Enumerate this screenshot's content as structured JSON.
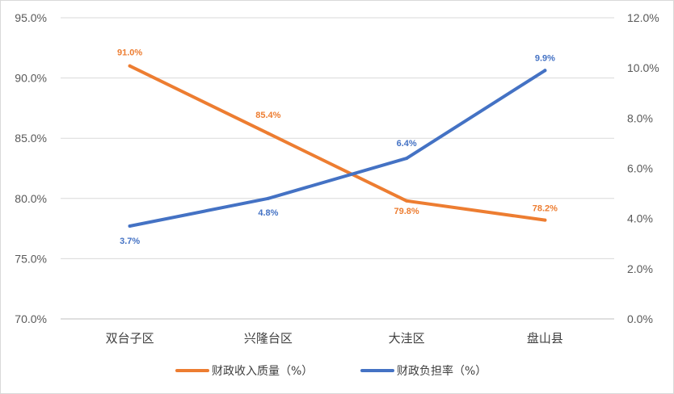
{
  "chart_data": {
    "type": "line",
    "categories": [
      "双台子区",
      "兴隆台区",
      "大洼区",
      "盘山县"
    ],
    "series": [
      {
        "name": "财政收入质量（%）",
        "axis": "left",
        "color": "#ED7D31",
        "values": [
          91.0,
          85.4,
          79.8,
          78.2
        ],
        "labels": [
          "91.0%",
          "85.4%",
          "79.8%",
          "78.2%"
        ]
      },
      {
        "name": "财政负担率（%）",
        "axis": "right",
        "color": "#4472C4",
        "values": [
          3.7,
          4.8,
          6.4,
          9.9
        ],
        "labels": [
          "3.7%",
          "4.8%",
          "6.4%",
          "9.9%"
        ]
      }
    ],
    "left_axis": {
      "ylim": [
        70,
        95
      ],
      "ticks": [
        70,
        75,
        80,
        85,
        90,
        95
      ],
      "tick_labels": [
        "70.0%",
        "75.0%",
        "80.0%",
        "85.0%",
        "90.0%",
        "95.0%"
      ]
    },
    "right_axis": {
      "ylim": [
        0,
        12
      ],
      "ticks": [
        0,
        2,
        4,
        6,
        8,
        10,
        12
      ],
      "tick_labels": [
        "0.0%",
        "2.0%",
        "4.0%",
        "6.0%",
        "8.0%",
        "10.0%",
        "12.0%"
      ]
    },
    "grid": true,
    "legend_position": "bottom",
    "title": ""
  }
}
